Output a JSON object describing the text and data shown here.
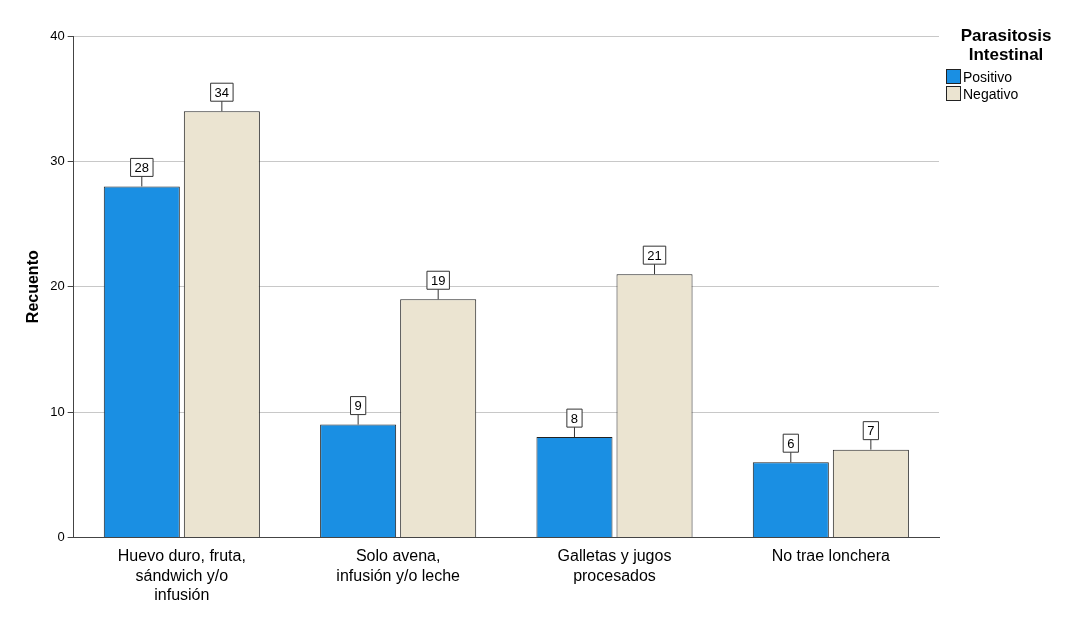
{
  "chart_data": {
    "type": "bar",
    "categories": [
      "Huevo duro, fruta, sándwich y/o infusión",
      "Solo avena, infusión y/o leche",
      "Galletas y jugos procesados",
      "No trae lonchera"
    ],
    "series": [
      {
        "name": "Positivo",
        "color": "#1a8fe3",
        "values": [
          28,
          9,
          8,
          6
        ]
      },
      {
        "name": "Negativo",
        "color": "#ebe4d1",
        "values": [
          34,
          19,
          21,
          7
        ]
      }
    ],
    "ylabel": "Recuento",
    "legend_title": "Parasitosis Intestinal",
    "ylim": [
      0,
      40
    ],
    "yticks": [
      0,
      10,
      20,
      30,
      40
    ],
    "grid": "y",
    "legend": "top right",
    "data_labels": true
  }
}
